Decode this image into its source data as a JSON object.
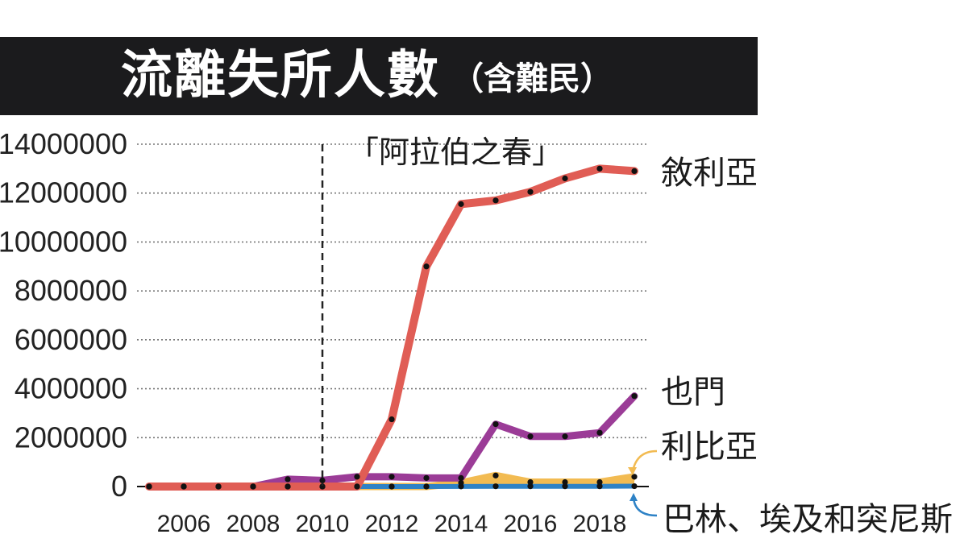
{
  "title": "流離失所人數",
  "subtitle": "（含難民）",
  "chart_data": {
    "type": "area",
    "x": [
      2005,
      2006,
      2007,
      2008,
      2009,
      2010,
      2011,
      2012,
      2013,
      2014,
      2015,
      2016,
      2017,
      2018,
      2019
    ],
    "xticks": [
      "2006",
      "2008",
      "2010",
      "2012",
      "2014",
      "2016",
      "2018"
    ],
    "yticks": [
      "0",
      "2000000",
      "4000000",
      "6000000",
      "8000000",
      "10000000",
      "12000000",
      "14000000"
    ],
    "ylim": [
      0,
      14000000
    ],
    "grid": true,
    "annotation": {
      "text": "「阿拉伯之春」",
      "x": 2010
    },
    "series": [
      {
        "name": "巴林、埃及和突尼斯",
        "color": "#2e82c6",
        "values": [
          0,
          0,
          0,
          0,
          0,
          0,
          0,
          0,
          0,
          5000,
          10000,
          10000,
          10000,
          10000,
          15000
        ]
      },
      {
        "name": "利比亞",
        "color": "#f2bb52",
        "values": [
          0,
          0,
          0,
          0,
          0,
          0,
          0,
          0,
          0,
          150000,
          450000,
          180000,
          180000,
          180000,
          400000
        ]
      },
      {
        "name": "也門",
        "color": "#9b3c97",
        "values": [
          0,
          0,
          0,
          0,
          300000,
          250000,
          400000,
          400000,
          350000,
          350000,
          2550000,
          2050000,
          2050000,
          2200000,
          3700000
        ]
      },
      {
        "name": "敘利亞",
        "color": "#e05d55",
        "values": [
          0,
          0,
          0,
          0,
          0,
          0,
          0,
          2750000,
          9000000,
          11550000,
          11700000,
          12050000,
          12600000,
          13000000,
          12900000
        ]
      }
    ]
  }
}
